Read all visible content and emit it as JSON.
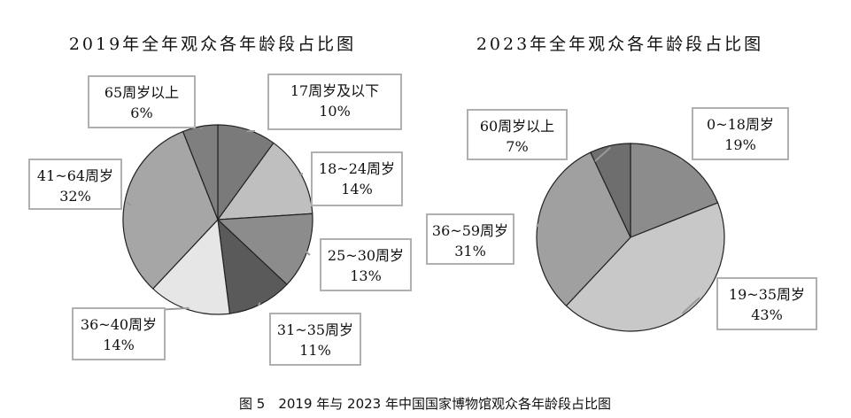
{
  "figure_caption": "图 5　2019 年与 2023 年中国国家博物馆观众各年龄段占比图",
  "chart_data": [
    {
      "type": "pie",
      "title": "2019年全年观众各年龄段占比图",
      "slices": [
        {
          "label": "17周岁及以下",
          "value": 10,
          "value_label": "10%",
          "color": "#7a7a7a"
        },
        {
          "label": "18~24周岁",
          "value": 14,
          "value_label": "14%",
          "color": "#bfbfbf"
        },
        {
          "label": "25~30周岁",
          "value": 13,
          "value_label": "13%",
          "color": "#8c8c8c"
        },
        {
          "label": "31~35周岁",
          "value": 11,
          "value_label": "11%",
          "color": "#5a5a5a"
        },
        {
          "label": "36~40周岁",
          "value": 14,
          "value_label": "14%",
          "color": "#e6e6e6"
        },
        {
          "label": "41~64周岁",
          "value": 32,
          "value_label": "32%",
          "color": "#a6a6a6"
        },
        {
          "label": "65周岁以上",
          "value": 6,
          "value_label": "6%",
          "color": "#7f7f7f"
        }
      ]
    },
    {
      "type": "pie",
      "title": "2023年全年观众各年龄段占比图",
      "slices": [
        {
          "label": "0~18周岁",
          "value": 19,
          "value_label": "19%",
          "color": "#8c8c8c"
        },
        {
          "label": "19~35周岁",
          "value": 43,
          "value_label": "43%",
          "color": "#c8c8c8"
        },
        {
          "label": "36~59周岁",
          "value": 31,
          "value_label": "31%",
          "color": "#a0a0a0"
        },
        {
          "label": "60周岁以上",
          "value": 7,
          "value_label": "7%",
          "color": "#6e6e6e"
        }
      ]
    }
  ]
}
